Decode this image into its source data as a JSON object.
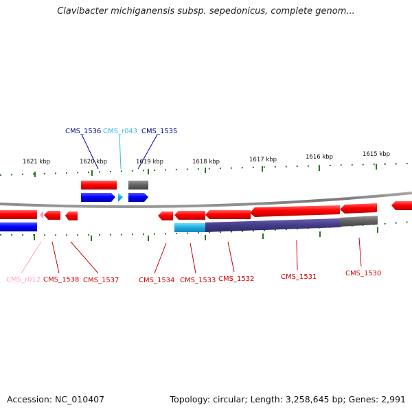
{
  "title": "Clavibacter michiganensis subsp. sepedonicus, complete genom...",
  "footer": {
    "accession": "Accession: NC_010407",
    "stats": "Topology: circular; Length: 3,258,645 bp; Genes: 2,991"
  },
  "colors": {
    "cds": "#ff0000",
    "cds_blue": "#0000ff",
    "rna_cyan": "#33bbee",
    "rna_pink": "#ff99cc",
    "pseudo_gray": "#666666",
    "overlap_purple": "#4a4090",
    "tick_green": "#227722",
    "backbone": "#808080"
  },
  "ticks": [
    {
      "label": "1621 kbp"
    },
    {
      "label": "1620 kbp"
    },
    {
      "label": "1619 kbp"
    },
    {
      "label": "1618 kbp"
    },
    {
      "label": "1617 kbp"
    },
    {
      "label": "1616 kbp"
    },
    {
      "label": "1615 kbp"
    }
  ],
  "genes": [
    {
      "name": "CMS_1536",
      "color": "#000099"
    },
    {
      "name": "CMS_r043",
      "color": "#33bbee"
    },
    {
      "name": "CMS_1535",
      "color": "#000099"
    },
    {
      "name": "CMS_r012",
      "color": "#ff99cc"
    },
    {
      "name": "CMS_1538",
      "color": "#cc0000"
    },
    {
      "name": "CMS_1537",
      "color": "#cc0000"
    },
    {
      "name": "CMS_1534",
      "color": "#cc0000"
    },
    {
      "name": "CMS_1533",
      "color": "#cc0000"
    },
    {
      "name": "CMS_1532",
      "color": "#cc0000"
    },
    {
      "name": "CMS_1531",
      "color": "#cc0000"
    },
    {
      "name": "CMS_1530",
      "color": "#cc0000"
    }
  ]
}
